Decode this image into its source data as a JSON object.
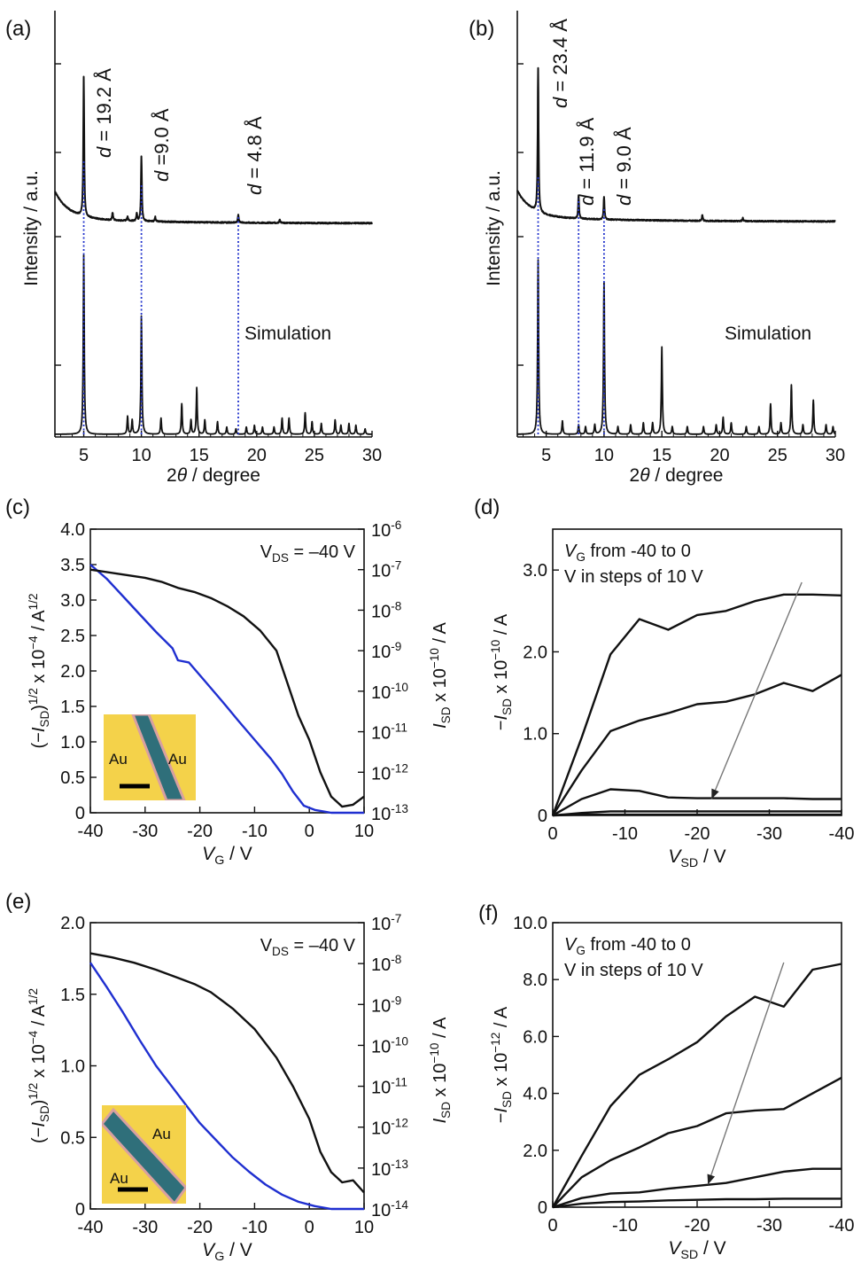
{
  "colors": {
    "black": "#111111",
    "blue": "#1f2fd0",
    "guide": "#2233cc",
    "inset_gold": "#f4d24a",
    "inset_channel": "#2f6f7a",
    "arrow": "#777777"
  },
  "chart_data": [
    {
      "panel": "(a)",
      "type": "line",
      "xlabel": "2θ / degree",
      "ylabel": "Intensity / a.u.",
      "xlim": [
        2.5,
        30
      ],
      "xticks": [
        5,
        10,
        15,
        20,
        25,
        30
      ],
      "annotations": [
        "d = 19.2 Å",
        "d =9.0 Å",
        "d = 4.8 Å",
        "Simulation"
      ],
      "peak_positions": [
        5.0,
        10.0,
        18.4
      ],
      "series": [
        {
          "role": "measured",
          "peaks": [
            [
              5.0,
              0.9
            ],
            [
              7.5,
              0.05
            ],
            [
              8.8,
              0.03
            ],
            [
              9.6,
              0.05
            ],
            [
              10.0,
              0.42
            ],
            [
              11.2,
              0.03
            ],
            [
              18.4,
              0.05
            ],
            [
              22.0,
              0.02
            ]
          ]
        },
        {
          "role": "simulation",
          "peaks": [
            [
              5.0,
              1.0
            ],
            [
              8.8,
              0.1
            ],
            [
              9.2,
              0.08
            ],
            [
              10.0,
              0.66
            ],
            [
              11.7,
              0.09
            ],
            [
              13.5,
              0.17
            ],
            [
              14.3,
              0.08
            ],
            [
              14.8,
              0.26
            ],
            [
              15.5,
              0.08
            ],
            [
              16.6,
              0.07
            ],
            [
              17.4,
              0.04
            ],
            [
              18.2,
              0.03
            ],
            [
              19.1,
              0.04
            ],
            [
              19.8,
              0.05
            ],
            [
              20.5,
              0.04
            ],
            [
              21.5,
              0.04
            ],
            [
              22.2,
              0.09
            ],
            [
              22.8,
              0.09
            ],
            [
              24.2,
              0.12
            ],
            [
              24.8,
              0.07
            ],
            [
              25.6,
              0.06
            ],
            [
              26.8,
              0.08
            ],
            [
              27.3,
              0.05
            ],
            [
              28.0,
              0.06
            ],
            [
              28.6,
              0.05
            ],
            [
              29.4,
              0.03
            ]
          ]
        }
      ]
    },
    {
      "panel": "(b)",
      "type": "line",
      "xlabel": "2θ / degree",
      "ylabel": "Intensity / a.u.",
      "xlim": [
        2.5,
        30
      ],
      "xticks": [
        5,
        10,
        15,
        20,
        25,
        30
      ],
      "annotations": [
        "d = 23.4 Å",
        "d = 11.9 Å",
        "d = 9.0 Å",
        "Simulation"
      ],
      "peak_positions": [
        4.3,
        7.8,
        10.0
      ],
      "series": [
        {
          "role": "measured",
          "peaks": [
            [
              4.3,
              0.95
            ],
            [
              7.8,
              0.15
            ],
            [
              10.0,
              0.15
            ],
            [
              18.5,
              0.04
            ],
            [
              22.0,
              0.02
            ]
          ]
        },
        {
          "role": "simulation",
          "peaks": [
            [
              4.3,
              0.92
            ],
            [
              6.4,
              0.07
            ],
            [
              7.8,
              0.05
            ],
            [
              8.4,
              0.04
            ],
            [
              9.2,
              0.05
            ],
            [
              10.0,
              0.8
            ],
            [
              11.2,
              0.04
            ],
            [
              12.3,
              0.05
            ],
            [
              13.4,
              0.06
            ],
            [
              14.2,
              0.06
            ],
            [
              15.0,
              0.46
            ],
            [
              15.9,
              0.04
            ],
            [
              17.2,
              0.04
            ],
            [
              18.6,
              0.04
            ],
            [
              19.7,
              0.05
            ],
            [
              20.3,
              0.09
            ],
            [
              21.0,
              0.06
            ],
            [
              22.3,
              0.04
            ],
            [
              23.4,
              0.04
            ],
            [
              24.4,
              0.16
            ],
            [
              25.3,
              0.06
            ],
            [
              26.2,
              0.26
            ],
            [
              27.2,
              0.05
            ],
            [
              28.1,
              0.18
            ],
            [
              29.2,
              0.05
            ],
            [
              29.8,
              0.04
            ]
          ]
        }
      ]
    },
    {
      "panel": "(c)",
      "type": "line",
      "annotation": "V_DS = –40 V",
      "xlabel": "V_G / V",
      "ylabel_left": "(−I_SD)^1/2 x 10^−4 / A^1/2",
      "ylabel_right": "I_SD x 10^−10 / A",
      "xlim": [
        -40,
        10
      ],
      "ylim_left": [
        0,
        4
      ],
      "ylim_right_log": [
        -13,
        -6
      ],
      "xticks": [
        "-40",
        "-30",
        "-20",
        "-10",
        "0",
        "10"
      ],
      "yticks_left": [
        "0",
        "0.5",
        "1.0",
        "1.5",
        "2.0",
        "2.5",
        "3.0",
        "3.5",
        "4.0"
      ],
      "yticks_right": [
        "10-13",
        "10-12",
        "10-11",
        "10-10",
        "10-9",
        "10-8",
        "10-7",
        "10-6"
      ],
      "inset_labels": [
        "Au",
        "Au"
      ],
      "series": [
        {
          "role": "sqrt",
          "color": "blue",
          "x": [
            -40,
            -37,
            -34,
            -31,
            -28,
            -25,
            -24,
            -22,
            -19,
            -16,
            -13,
            -10,
            -7,
            -5,
            -3,
            -1,
            1,
            4,
            10
          ],
          "y": [
            3.5,
            3.3,
            3.05,
            2.8,
            2.55,
            2.32,
            2.15,
            2.12,
            1.85,
            1.58,
            1.3,
            1.03,
            0.76,
            0.55,
            0.3,
            0.1,
            0.04,
            0.0,
            0.0
          ]
        },
        {
          "role": "log",
          "color": "black",
          "x": [
            -40,
            -35,
            -30,
            -27,
            -24,
            -21,
            -18,
            -15,
            -12,
            -9,
            -6,
            -4,
            -2,
            0,
            2,
            4,
            6,
            8,
            10
          ],
          "y": [
            -7.0,
            -7.1,
            -7.2,
            -7.3,
            -7.45,
            -7.55,
            -7.7,
            -7.9,
            -8.15,
            -8.5,
            -9.0,
            -9.8,
            -10.6,
            -11.2,
            -12.0,
            -12.6,
            -12.85,
            -12.8,
            -12.6
          ]
        }
      ]
    },
    {
      "panel": "(d)",
      "type": "line",
      "annotation": [
        "V_G from -40 to 0",
        "V in steps of 10 V"
      ],
      "xlabel": "V_SD / V",
      "ylabel": "−I_SD x 10^−10 / A",
      "xlim": [
        0,
        -40
      ],
      "ylim": [
        0,
        3.5
      ],
      "xticks": [
        "0",
        "-10",
        "-20",
        "-30",
        "-40"
      ],
      "yticks": [
        "0",
        "1.0",
        "2.0",
        "3.0"
      ],
      "series": [
        {
          "x": [
            0,
            -4,
            -8,
            -12,
            -16,
            -20,
            -24,
            -28,
            -32,
            -36,
            -40
          ],
          "y": [
            0,
            0.95,
            1.97,
            2.4,
            2.27,
            2.45,
            2.5,
            2.62,
            2.7,
            2.7,
            2.69
          ]
        },
        {
          "x": [
            0,
            -4,
            -8,
            -12,
            -16,
            -20,
            -24,
            -28,
            -32,
            -36,
            -40
          ],
          "y": [
            0,
            0.55,
            1.03,
            1.16,
            1.25,
            1.36,
            1.39,
            1.48,
            1.62,
            1.52,
            1.72
          ]
        },
        {
          "x": [
            0,
            -4,
            -8,
            -12,
            -16,
            -20,
            -24,
            -28,
            -32,
            -36,
            -40
          ],
          "y": [
            0,
            0.2,
            0.32,
            0.3,
            0.22,
            0.21,
            0.21,
            0.21,
            0.21,
            0.2,
            0.2
          ]
        },
        {
          "x": [
            0,
            -4,
            -8,
            -12,
            -16,
            -20,
            -24,
            -28,
            -32,
            -36,
            -40
          ],
          "y": [
            0,
            0.03,
            0.05,
            0.05,
            0.05,
            0.05,
            0.05,
            0.05,
            0.05,
            0.05,
            0.05
          ]
        },
        {
          "x": [
            0,
            -4,
            -8,
            -12,
            -16,
            -20,
            -24,
            -28,
            -32,
            -36,
            -40
          ],
          "y": [
            0,
            0.01,
            0.01,
            0.01,
            0.01,
            0.01,
            0.01,
            0.01,
            0.01,
            0.01,
            0.01
          ]
        }
      ],
      "arrow": {
        "from": [
          -34.5,
          2.85
        ],
        "to": [
          -22,
          0.2
        ]
      }
    },
    {
      "panel": "(e)",
      "type": "line",
      "annotation": "V_DS = –40 V",
      "xlabel": "V_G / V",
      "ylabel_left": "(−I_SD)^1/2 x 10^−4 / A^1/2",
      "ylabel_right": "I_SD x 10^−10 / A",
      "xlim": [
        -40,
        10
      ],
      "ylim_left": [
        0,
        2
      ],
      "ylim_right_log": [
        -14,
        -7
      ],
      "xticks": [
        "-40",
        "-30",
        "-20",
        "-10",
        "0",
        "10"
      ],
      "yticks_left": [
        "0",
        "0.5",
        "1.0",
        "1.5",
        "2.0"
      ],
      "yticks_right": [
        "10-14",
        "10-13",
        "10-12",
        "10-11",
        "10-10",
        "10-9",
        "10-8",
        "10-7"
      ],
      "inset_labels": [
        "Au",
        "Au"
      ],
      "series": [
        {
          "role": "sqrt",
          "color": "blue",
          "x": [
            -40,
            -37,
            -34,
            -31,
            -28,
            -25,
            -22,
            -20,
            -17,
            -14,
            -11,
            -8,
            -5,
            -2,
            1,
            4,
            10
          ],
          "y": [
            1.72,
            1.55,
            1.37,
            1.18,
            1.0,
            0.85,
            0.7,
            0.6,
            0.48,
            0.36,
            0.26,
            0.17,
            0.1,
            0.05,
            0.02,
            0.0,
            0.0
          ]
        },
        {
          "role": "log",
          "color": "black",
          "x": [
            -40,
            -36,
            -32,
            -28,
            -24,
            -21,
            -18,
            -14,
            -10,
            -6,
            -3,
            0,
            2,
            4,
            6,
            8,
            10
          ],
          "y": [
            -7.75,
            -7.85,
            -7.98,
            -8.15,
            -8.35,
            -8.5,
            -8.7,
            -9.1,
            -9.6,
            -10.3,
            -11.0,
            -11.8,
            -12.6,
            -13.1,
            -13.35,
            -13.3,
            -13.6
          ]
        }
      ]
    },
    {
      "panel": "(f)",
      "type": "line",
      "annotation": [
        "V_G from -40 to 0",
        "V in steps of 10 V"
      ],
      "xlabel": "V_SD / V",
      "ylabel": "−I_SD x 10^−12 / A",
      "xlim": [
        0,
        -40
      ],
      "ylim": [
        0,
        10
      ],
      "xticks": [
        "0",
        "-10",
        "-20",
        "-30",
        "-40"
      ],
      "yticks": [
        "0",
        "2.0",
        "4.0",
        "6.0",
        "8.0",
        "10.0"
      ],
      "series": [
        {
          "x": [
            0,
            -4,
            -8,
            -12,
            -16,
            -20,
            -24,
            -28,
            -32,
            -36,
            -40
          ],
          "y": [
            0,
            1.8,
            3.55,
            4.65,
            5.2,
            5.8,
            6.7,
            7.4,
            7.05,
            8.35,
            8.55
          ]
        },
        {
          "x": [
            0,
            -4,
            -8,
            -12,
            -16,
            -20,
            -24,
            -28,
            -32,
            -36,
            -40
          ],
          "y": [
            0,
            1.05,
            1.65,
            2.1,
            2.6,
            2.85,
            3.3,
            3.4,
            3.45,
            4.0,
            4.55
          ]
        },
        {
          "x": [
            0,
            -4,
            -8,
            -12,
            -16,
            -20,
            -24,
            -28,
            -32,
            -36,
            -40
          ],
          "y": [
            0,
            0.32,
            0.48,
            0.52,
            0.65,
            0.75,
            0.85,
            1.05,
            1.25,
            1.35,
            1.35
          ]
        },
        {
          "x": [
            0,
            -4,
            -8,
            -12,
            -16,
            -20,
            -24,
            -28,
            -32,
            -36,
            -40
          ],
          "y": [
            0,
            0.12,
            0.18,
            0.2,
            0.24,
            0.26,
            0.28,
            0.28,
            0.3,
            0.3,
            0.3
          ]
        }
      ],
      "arrow": {
        "from": [
          -32,
          8.6
        ],
        "to": [
          -21.5,
          0.8
        ]
      }
    }
  ]
}
